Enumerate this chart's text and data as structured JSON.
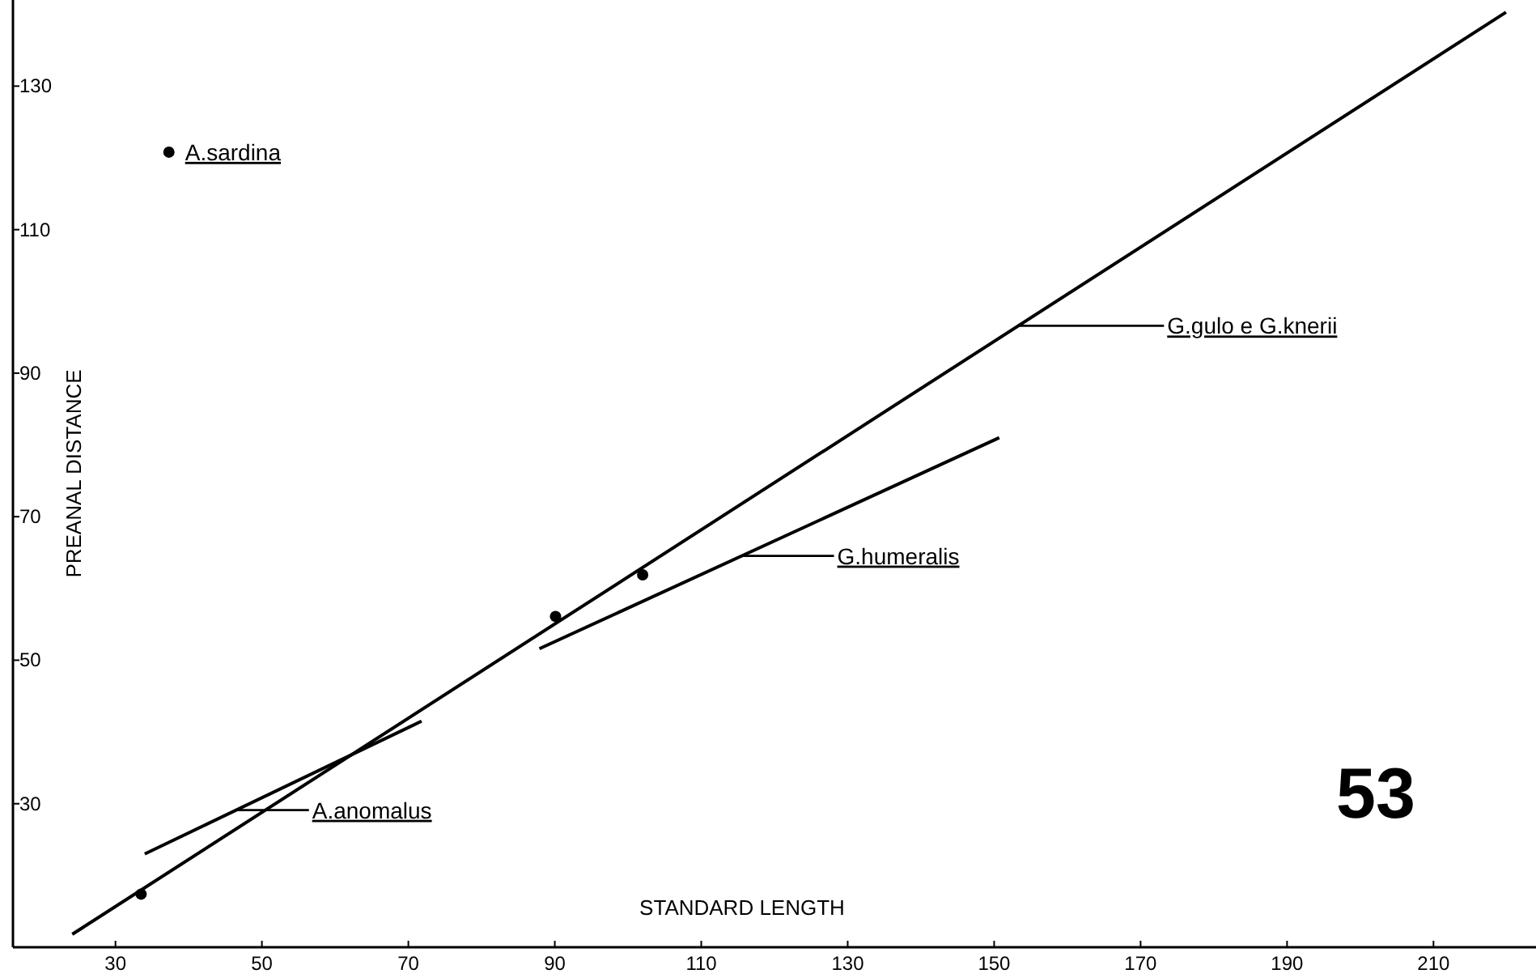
{
  "chart_data": {
    "type": "line",
    "xlabel": "STANDARD LENGTH",
    "ylabel": "PREANAL DISTANCE",
    "xlim": [
      16,
      224
    ],
    "ylim": [
      10,
      142
    ],
    "xticks": [
      30,
      50,
      70,
      90,
      110,
      130,
      150,
      170,
      190,
      210
    ],
    "yticks": [
      30,
      50,
      70,
      90,
      110,
      130
    ],
    "series": [
      {
        "color": "#000000",
        "x": [
          24.1,
          219.9
        ],
        "values": [
          11.8,
          140.3
        ]
      },
      {
        "color": "#000000",
        "x": [
          87.9,
          150.7
        ],
        "values": [
          51.6,
          81.0
        ]
      },
      {
        "color": "#000000",
        "x": [
          34,
          71.8
        ],
        "values": [
          23.0,
          41.5
        ]
      },
      {
        "type": "scatter",
        "color": "#000000",
        "x": [
          37.3,
          33.5,
          90.1,
          102
        ],
        "values": [
          120.8,
          17.4,
          56.1,
          61.9
        ]
      }
    ],
    "annotations": [
      {
        "text": "G.gulo e G.knerii",
        "x": 153.3,
        "y": 96.6
      },
      "G.humeralis",
      "A.anomalus",
      {
        "text": "A.sardina",
        "x": 37.3,
        "y": 120.8
      },
      "53"
    ]
  }
}
